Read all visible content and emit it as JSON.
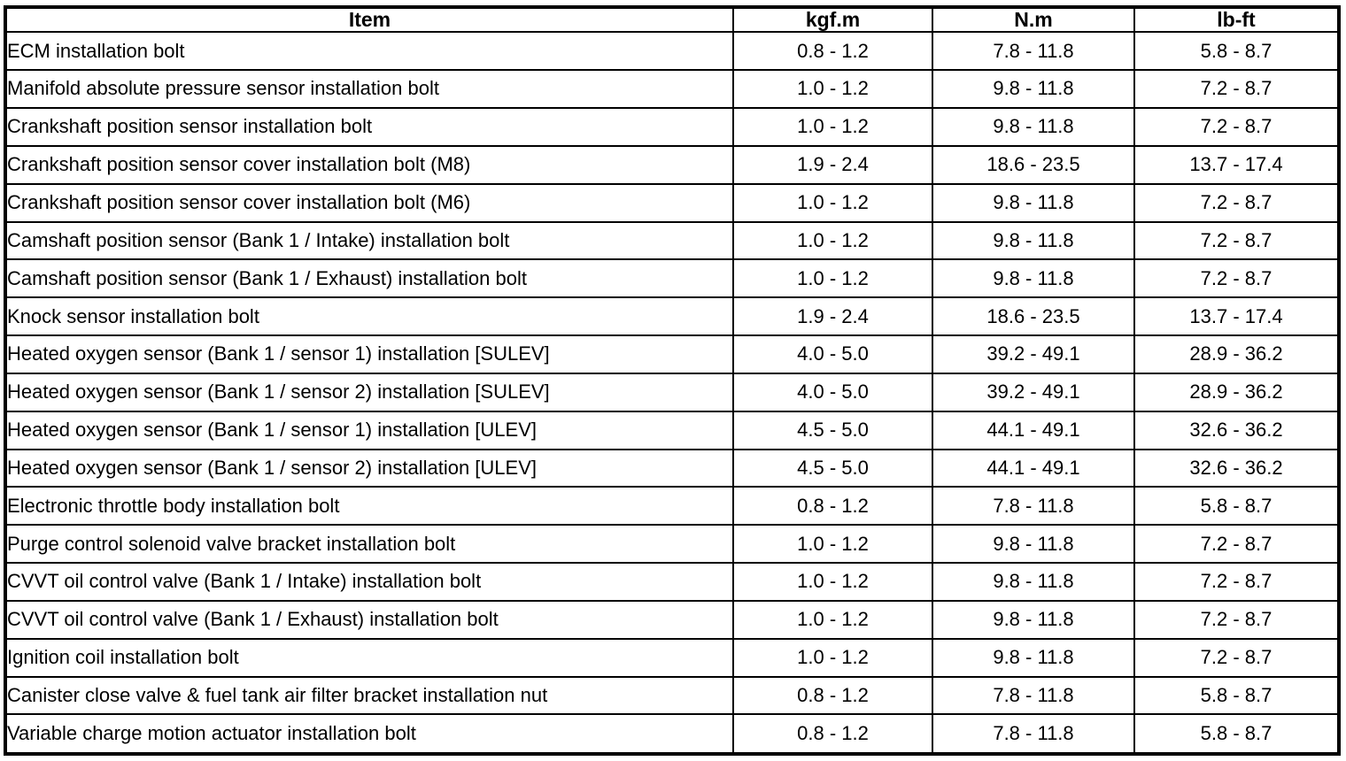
{
  "table": {
    "columns": [
      "Item",
      "kgf.m",
      "N.m",
      "lb-ft"
    ],
    "rows": [
      [
        "ECM installation bolt",
        "0.8 - 1.2",
        "7.8 - 11.8",
        "5.8 - 8.7"
      ],
      [
        "Manifold absolute pressure sensor installation bolt",
        "1.0 - 1.2",
        "9.8 - 11.8",
        "7.2 - 8.7"
      ],
      [
        "Crankshaft position sensor installation bolt",
        "1.0 - 1.2",
        "9.8 - 11.8",
        "7.2 - 8.7"
      ],
      [
        "Crankshaft position sensor cover installation bolt (M8)",
        "1.9 - 2.4",
        "18.6 - 23.5",
        "13.7 - 17.4"
      ],
      [
        "Crankshaft position sensor cover installation bolt (M6)",
        "1.0 - 1.2",
        "9.8 - 11.8",
        "7.2 - 8.7"
      ],
      [
        "Camshaft position sensor (Bank 1 / Intake) installation bolt",
        "1.0 - 1.2",
        "9.8 - 11.8",
        "7.2 - 8.7"
      ],
      [
        "Camshaft position sensor (Bank 1 / Exhaust) installation bolt",
        "1.0 - 1.2",
        "9.8 - 11.8",
        "7.2 - 8.7"
      ],
      [
        "Knock sensor installation bolt",
        "1.9 - 2.4",
        "18.6 - 23.5",
        "13.7 - 17.4"
      ],
      [
        "Heated oxygen sensor (Bank 1 / sensor 1) installation [SULEV]",
        "4.0 - 5.0",
        "39.2 - 49.1",
        "28.9 - 36.2"
      ],
      [
        "Heated oxygen sensor (Bank 1 / sensor 2) installation [SULEV]",
        "4.0 - 5.0",
        "39.2 - 49.1",
        "28.9 - 36.2"
      ],
      [
        "Heated oxygen sensor (Bank 1 / sensor 1) installation [ULEV]",
        "4.5 - 5.0",
        "44.1 - 49.1",
        "32.6 - 36.2"
      ],
      [
        "Heated oxygen sensor (Bank 1 / sensor 2) installation [ULEV]",
        "4.5 - 5.0",
        "44.1 - 49.1",
        "32.6 - 36.2"
      ],
      [
        "Electronic throttle body installation bolt",
        "0.8 - 1.2",
        "7.8 - 11.8",
        "5.8 - 8.7"
      ],
      [
        "Purge control solenoid valve bracket installation bolt",
        "1.0 - 1.2",
        "9.8 - 11.8",
        "7.2 - 8.7"
      ],
      [
        "CVVT oil control valve (Bank 1 / Intake) installation bolt",
        "1.0 - 1.2",
        "9.8 - 11.8",
        "7.2 - 8.7"
      ],
      [
        "CVVT oil control valve (Bank 1 / Exhaust) installation bolt",
        "1.0 - 1.2",
        "9.8 - 11.8",
        "7.2 - 8.7"
      ],
      [
        "Ignition coil installation bolt",
        "1.0 - 1.2",
        "9.8 - 11.8",
        "7.2 - 8.7"
      ],
      [
        "Canister close valve & fuel tank air filter bracket installation nut",
        "0.8 - 1.2",
        "7.8 - 11.8",
        "5.8 - 8.7"
      ],
      [
        "Variable charge motion actuator installation bolt",
        "0.8 - 1.2",
        "7.8 - 11.8",
        "5.8 - 8.7"
      ]
    ]
  },
  "colors": {
    "border": "#000000",
    "background": "#ffffff",
    "text": "#000000"
  }
}
